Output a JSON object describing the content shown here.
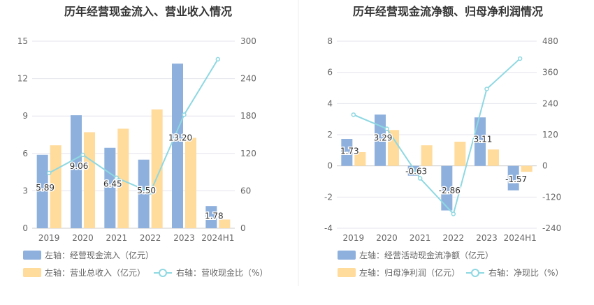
{
  "colors": {
    "bar_primary": "#8eb0dd",
    "bar_secondary": "#ffdb9c",
    "line": "#8ed8e2",
    "grid": "#e4e4ee",
    "axis": "#cccccc",
    "divider": "#eeeeee"
  },
  "chart_data": [
    {
      "type": "bar",
      "title": "历年经营现金流入、营业收入情况",
      "categories": [
        "2019",
        "2020",
        "2021",
        "2022",
        "2023",
        "2024H1"
      ],
      "left_axis": {
        "min": 0,
        "max": 15,
        "ticks": [
          0,
          3,
          6,
          9,
          12,
          15
        ]
      },
      "right_axis": {
        "min": 0,
        "max": 300,
        "ticks": [
          0,
          60,
          120,
          180,
          240,
          300
        ]
      },
      "series": [
        {
          "name": "左轴：经营现金流入（亿元）",
          "kind": "bar",
          "axis": "left",
          "values": [
            5.89,
            9.06,
            6.45,
            5.5,
            13.2,
            1.78
          ],
          "labels": [
            "5.89",
            "9.06",
            "6.45",
            "5.50",
            "13.20",
            "1.78"
          ]
        },
        {
          "name": "左轴：营业总收入（亿元）",
          "kind": "bar",
          "axis": "left",
          "values": [
            6.65,
            7.7,
            7.98,
            9.53,
            7.25,
            0.7
          ]
        },
        {
          "name": "右轴：营收现金比（%）",
          "kind": "line",
          "axis": "right",
          "values": [
            88.6,
            117.7,
            80.9,
            57.7,
            182.1,
            271.0
          ]
        }
      ],
      "grid": true,
      "legend_position": "bottom"
    },
    {
      "type": "bar",
      "title": "历年经营现金流净额、归母净利润情况",
      "categories": [
        "2019",
        "2020",
        "2021",
        "2022",
        "2023",
        "2024H1"
      ],
      "left_axis": {
        "min": -4,
        "max": 8,
        "ticks": [
          -4,
          -2,
          0,
          2,
          4,
          6,
          8
        ]
      },
      "right_axis": {
        "min": -240,
        "max": 480,
        "ticks": [
          -240,
          -120,
          0,
          120,
          240,
          360,
          480
        ]
      },
      "series": [
        {
          "name": "左轴：经营活动现金流净额（亿元）",
          "kind": "bar",
          "axis": "left",
          "values": [
            1.73,
            3.29,
            -0.63,
            -2.86,
            3.11,
            -1.57
          ],
          "labels": [
            "1.73",
            "3.29",
            "-0.63",
            "-2.86",
            "3.11",
            "-1.57"
          ]
        },
        {
          "name": "左轴：归母净利润（亿元）",
          "kind": "bar",
          "axis": "left",
          "values": [
            0.88,
            2.3,
            1.32,
            1.55,
            1.05,
            -0.38
          ]
        },
        {
          "name": "右轴：净现比（%）",
          "kind": "line",
          "axis": "right",
          "values": [
            197,
            143,
            -48,
            -185,
            296,
            413
          ]
        }
      ],
      "grid": true,
      "legend_position": "bottom"
    }
  ]
}
